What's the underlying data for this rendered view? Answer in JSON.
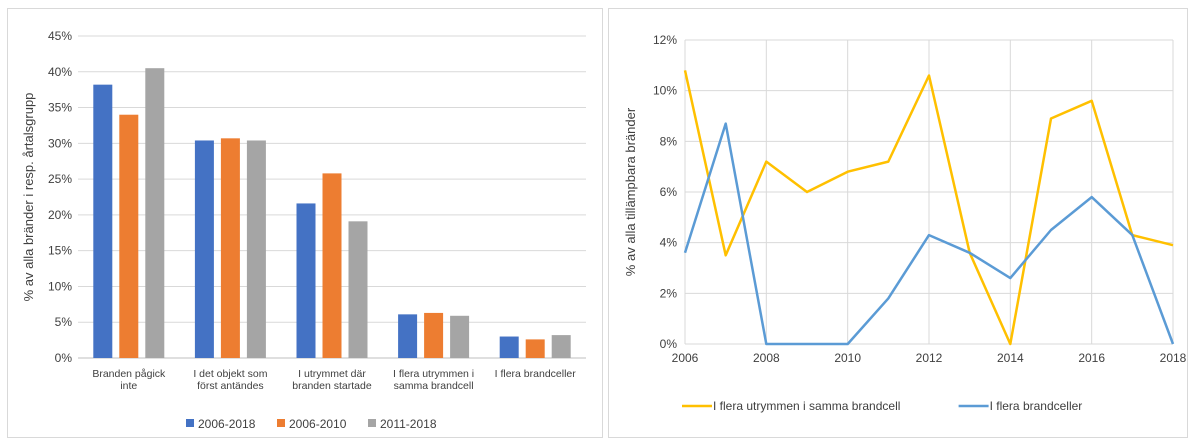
{
  "chart_data": [
    {
      "type": "bar",
      "title": "",
      "xlabel": "",
      "ylabel": "% av alla bränder i resp. årtalsgrupp",
      "ylim": [
        0,
        45
      ],
      "yticks": [
        "0%",
        "5%",
        "10%",
        "15%",
        "20%",
        "25%",
        "30%",
        "35%",
        "40%",
        "45%"
      ],
      "categories": [
        [
          "Branden pågick",
          "inte"
        ],
        [
          "I det objekt som",
          "först antändes"
        ],
        [
          "I utrymmet där",
          "branden startade"
        ],
        [
          "I flera utrymmen i",
          "samma brandcell"
        ],
        [
          "I flera brandceller"
        ]
      ],
      "series": [
        {
          "name": "2006-2018",
          "color": "#4472c4",
          "values": [
            38.2,
            30.4,
            21.6,
            6.1,
            3.0
          ]
        },
        {
          "name": "2006-2010",
          "color": "#ed7d31",
          "values": [
            34.0,
            30.7,
            25.8,
            6.3,
            2.6
          ]
        },
        {
          "name": "2011-2018",
          "color": "#a5a5a5",
          "values": [
            40.5,
            30.4,
            19.1,
            5.9,
            3.2
          ]
        }
      ],
      "grid": true,
      "legend": "bottom"
    },
    {
      "type": "line",
      "title": "",
      "xlabel": "",
      "ylabel": "% av alla tillämpbara bränder",
      "xlim": [
        2006,
        2018
      ],
      "ylim": [
        0,
        12
      ],
      "xticks": [
        "2006",
        "2008",
        "2010",
        "2012",
        "2014",
        "2016",
        "2018"
      ],
      "yticks": [
        "0%",
        "2%",
        "4%",
        "6%",
        "8%",
        "10%",
        "12%"
      ],
      "x": [
        2006,
        2007,
        2008,
        2009,
        2010,
        2011,
        2012,
        2013,
        2014,
        2015,
        2016,
        2017,
        2018
      ],
      "series": [
        {
          "name": "I flera utrymmen i samma brandcell",
          "color": "#ffc000",
          "values": [
            10.8,
            3.5,
            7.2,
            6.0,
            6.8,
            7.2,
            10.6,
            3.6,
            0.0,
            8.9,
            9.6,
            4.3,
            3.9
          ]
        },
        {
          "name": "I flera brandceller",
          "color": "#5b9bd5",
          "values": [
            3.6,
            8.7,
            0.0,
            0.0,
            0.0,
            1.8,
            4.3,
            3.6,
            2.6,
            4.5,
            5.8,
            4.3,
            0.0
          ]
        }
      ],
      "grid": true,
      "legend": "bottom"
    }
  ]
}
